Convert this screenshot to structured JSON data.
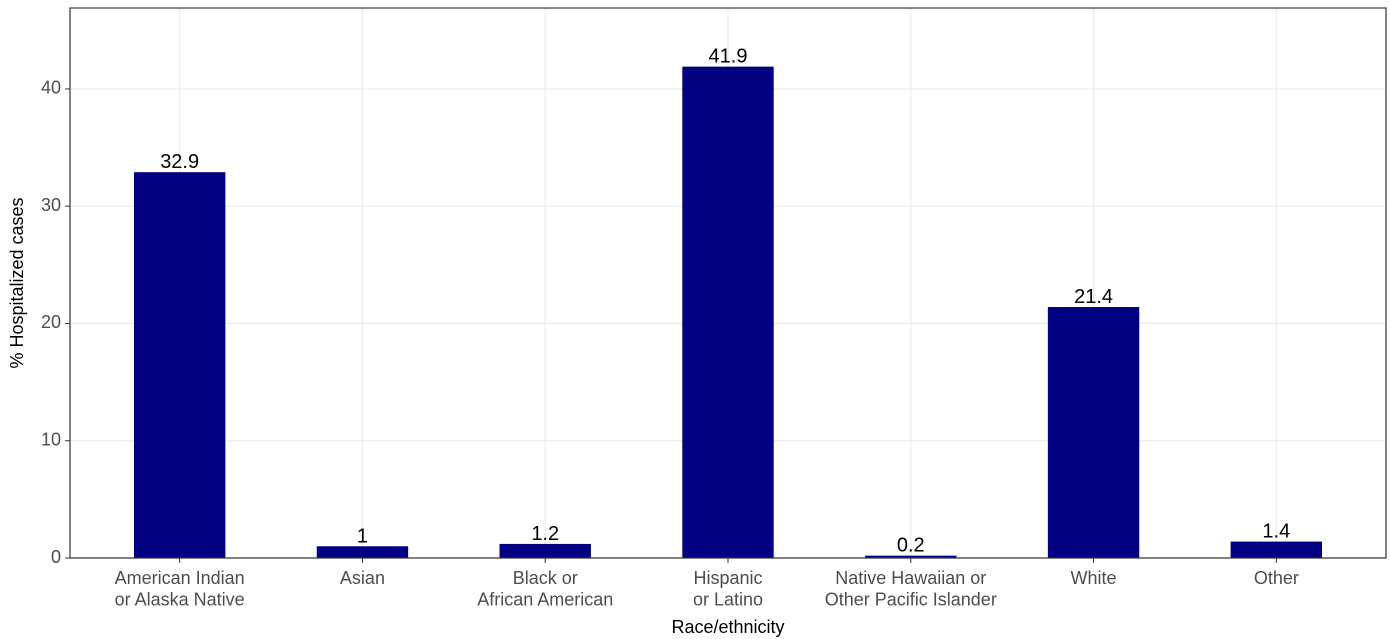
{
  "chart_data": {
    "type": "bar",
    "x_label": "Race/ethnicity",
    "y_label": "% Hospitalized cases",
    "categories": [
      "American Indian\nor Alaska Native",
      "Asian",
      "Black or\nAfrican American",
      "Hispanic\nor Latino",
      "Native Hawaiian or\nOther Pacific Islander",
      "White",
      "Other"
    ],
    "values": [
      32.9,
      1,
      1.2,
      41.9,
      0.2,
      21.4,
      1.4
    ],
    "color": "#000080",
    "ylim": [
      0,
      46.9
    ],
    "yticks": [
      0,
      10,
      20,
      30,
      40
    ],
    "grid": true
  }
}
